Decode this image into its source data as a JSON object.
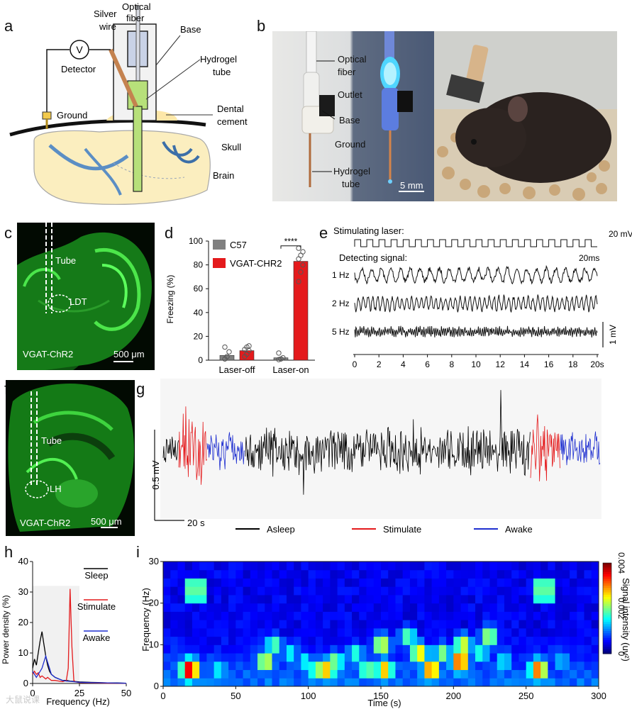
{
  "panel_labels": {
    "a": "a",
    "b": "b",
    "c": "c",
    "d": "d",
    "e": "e",
    "f": "f",
    "g": "g",
    "h": "h",
    "i": "i"
  },
  "panel_a": {
    "silver_wire": [
      "Silver",
      "wire"
    ],
    "optical_fiber": [
      "Optical",
      "fiber"
    ],
    "base": "Base",
    "hydrogel_tube": [
      "Hydrogel",
      "tube"
    ],
    "detector_symbol": "V",
    "detector": "Detector",
    "ground": "Ground",
    "dental_cement": [
      "Dental",
      "cement"
    ],
    "skull": "Skull",
    "brain": "Brain"
  },
  "panel_b": {
    "optical_fiber": [
      "Optical",
      "fiber"
    ],
    "outlet": "Outlet",
    "base": "Base",
    "ground": "Ground",
    "hydrogel_tube": [
      "Hydrogel",
      "tube"
    ],
    "scale": "5 mm"
  },
  "panel_c": {
    "tube": "Tube",
    "region": "LDT",
    "line": "VGAT-ChR2",
    "scale": "500 μm"
  },
  "panel_f": {
    "tube": "Tube",
    "region": "LH",
    "line": "VGAT-ChR2",
    "scale": "500 μm"
  },
  "panel_e": {
    "stim_label": "Stimulating laser:",
    "stim_scale": "20 mV",
    "stim_time": "20ms",
    "detect_label": "Detecting signal:",
    "traces": [
      {
        "label": "1 Hz",
        "freq": 1
      },
      {
        "label": "2 Hz",
        "freq": 2
      },
      {
        "label": "5 Hz",
        "freq": 5
      }
    ],
    "amp_scale": "1 mV",
    "x_ticks": [
      "0",
      "2",
      "4",
      "6",
      "8",
      "10",
      "12",
      "14",
      "16",
      "18",
      "20s"
    ]
  },
  "panel_g": {
    "amp_scale": "0.5 mV",
    "time_scale": "20 s",
    "legend": [
      {
        "name": "Asleep",
        "color": "#000000"
      },
      {
        "name": "Stimulate",
        "color": "#e41a1c"
      },
      {
        "name": "Awake",
        "color": "#1f2fd0"
      }
    ]
  },
  "chart_data": [
    {
      "panel": "d",
      "type": "bar",
      "ylabel": "Freezing (%)",
      "ylim": [
        0,
        100
      ],
      "yticks": [
        "0",
        "20",
        "40",
        "60",
        "80",
        "100"
      ],
      "categories": [
        "Laser-off",
        "Laser-on"
      ],
      "series": [
        {
          "name": "C57",
          "color": "#808080",
          "values": [
            4,
            2
          ],
          "points": [
            [
              1,
              3,
              7,
              11
            ],
            [
              0.5,
              1,
              2,
              6
            ]
          ]
        },
        {
          "name": "VGAT-CHR2",
          "color": "#e41a1c",
          "values": [
            8,
            83
          ],
          "points": [
            [
              3,
              5,
              8,
              9,
              11,
              12
            ],
            [
              66,
              74,
              80,
              85,
              88,
              91,
              94
            ]
          ]
        }
      ],
      "significance": "****"
    },
    {
      "panel": "h",
      "type": "line",
      "xlabel": "Frequency (Hz)",
      "ylabel": "Power density (%)",
      "xlim": [
        0,
        50
      ],
      "ylim": [
        0,
        40
      ],
      "xticks": [
        "0",
        "25",
        "50"
      ],
      "yticks": [
        "0",
        "10",
        "20",
        "30",
        "40"
      ],
      "series": [
        {
          "name": "Sleep",
          "color": "#000000",
          "x": [
            0,
            1,
            2,
            3,
            4,
            5,
            6,
            7,
            8,
            9,
            10,
            12,
            14,
            16,
            18,
            20,
            25,
            30,
            35,
            40,
            45,
            50
          ],
          "values": [
            5,
            8,
            6,
            10,
            14,
            17,
            13,
            9,
            6,
            4,
            3,
            2,
            1.5,
            1,
            1,
            0.8,
            0.5,
            0.4,
            0.3,
            0.2,
            0.2,
            0.1
          ]
        },
        {
          "name": "Stimulate",
          "color": "#e41a1c",
          "x": [
            0,
            1,
            2,
            3,
            4,
            5,
            6,
            7,
            8,
            10,
            12,
            14,
            16,
            18,
            19,
            20,
            21,
            22,
            23,
            25,
            30,
            40,
            50
          ],
          "values": [
            3,
            4,
            3,
            3.5,
            2,
            2.5,
            2,
            1.5,
            2,
            1,
            1,
            0.8,
            0.6,
            1,
            5,
            31,
            12,
            1,
            0.5,
            0.3,
            0.2,
            0.1,
            0.1
          ]
        },
        {
          "name": "Awake",
          "color": "#1f2fd0",
          "x": [
            0,
            1,
            2,
            3,
            4,
            5,
            6,
            7,
            8,
            9,
            10,
            12,
            14,
            16,
            18,
            20,
            25,
            30,
            40,
            50
          ],
          "values": [
            4,
            3,
            2,
            3,
            4,
            5,
            7,
            9,
            7,
            5,
            3,
            2,
            1.5,
            1,
            0.8,
            0.7,
            0.4,
            0.3,
            0.2,
            0.1
          ]
        }
      ]
    },
    {
      "panel": "i",
      "type": "heatmap",
      "xlabel": "Time (s)",
      "ylabel": "Frequency (Hz)",
      "xlim": [
        0,
        300
      ],
      "ylim": [
        0,
        30
      ],
      "xticks": [
        "0",
        "50",
        "100",
        "150",
        "200",
        "250",
        "300"
      ],
      "yticks": [
        "0",
        "10",
        "20",
        "30"
      ],
      "colorbar_label": "Signal intensity (uv²)",
      "colorbar_ticks": [
        "0.004",
        "0.002",
        "0"
      ],
      "clim": [
        0,
        0.004
      ],
      "stim_periods": [
        [
          15,
          28
        ],
        [
          255,
          268
        ]
      ],
      "stim_band_hz": [
        19,
        26
      ],
      "hotspots": [
        {
          "t": 16,
          "f": 3,
          "v": 0.004
        },
        {
          "t": 36,
          "f": 3,
          "v": 0.0016
        },
        {
          "t": 68,
          "f": 5,
          "v": 0.0026
        },
        {
          "t": 74,
          "f": 9,
          "v": 0.002
        },
        {
          "t": 85,
          "f": 7,
          "v": 0.0016
        },
        {
          "t": 95,
          "f": 5,
          "v": 0.0016
        },
        {
          "t": 104,
          "f": 3,
          "v": 0.0024
        },
        {
          "t": 110,
          "f": 3,
          "v": 0.003
        },
        {
          "t": 116,
          "f": 5,
          "v": 0.0022
        },
        {
          "t": 130,
          "f": 7,
          "v": 0.0018
        },
        {
          "t": 138,
          "f": 3,
          "v": 0.0022
        },
        {
          "t": 148,
          "f": 9,
          "v": 0.0026
        },
        {
          "t": 150,
          "f": 3,
          "v": 0.003
        },
        {
          "t": 166,
          "f": 11,
          "v": 0.002
        },
        {
          "t": 174,
          "f": 7,
          "v": 0.0028
        },
        {
          "t": 182,
          "f": 3,
          "v": 0.0034
        },
        {
          "t": 190,
          "f": 7,
          "v": 0.0022
        },
        {
          "t": 202,
          "f": 5,
          "v": 0.0036
        },
        {
          "t": 204,
          "f": 9,
          "v": 0.0026
        },
        {
          "t": 216,
          "f": 7,
          "v": 0.0018
        },
        {
          "t": 222,
          "f": 11,
          "v": 0.0024
        },
        {
          "t": 232,
          "f": 5,
          "v": 0.0016
        },
        {
          "t": 256,
          "f": 3,
          "v": 0.0034
        },
        {
          "t": 272,
          "f": 5,
          "v": 0.0014
        }
      ]
    }
  ],
  "watermark": "大鼠说课"
}
